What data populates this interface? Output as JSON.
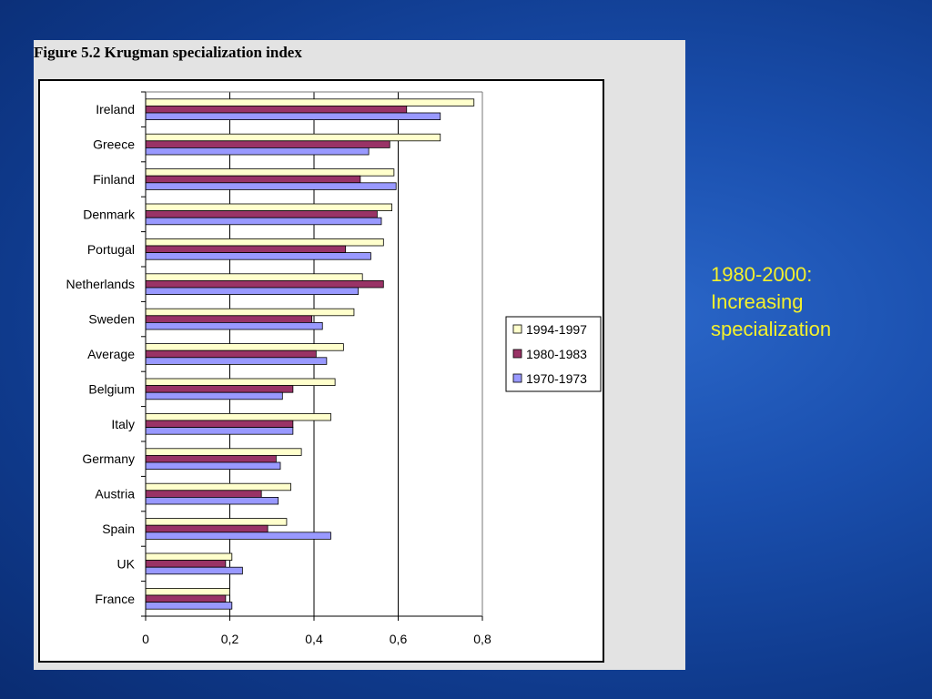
{
  "slide": {
    "figure_title": "Figure 5.2 Krugman specialization index",
    "side_note": [
      "1980-2000:",
      "Increasing",
      "specialization"
    ]
  },
  "chart_data": {
    "type": "bar",
    "orientation": "horizontal",
    "categories": [
      "Ireland",
      "Greece",
      "Finland",
      "Denmark",
      "Portugal",
      "Netherlands",
      "Sweden",
      "Average",
      "Belgium",
      "Italy",
      "Germany",
      "Austria",
      "Spain",
      "UK",
      "France"
    ],
    "series": [
      {
        "name": "1994-1997",
        "color": "#ffffcc",
        "values": [
          0.78,
          0.7,
          0.59,
          0.585,
          0.565,
          0.515,
          0.495,
          0.47,
          0.45,
          0.44,
          0.37,
          0.345,
          0.335,
          0.205,
          0.2
        ]
      },
      {
        "name": "1980-1983",
        "color": "#993366",
        "values": [
          0.62,
          0.58,
          0.51,
          0.55,
          0.475,
          0.565,
          0.395,
          0.405,
          0.35,
          0.35,
          0.31,
          0.275,
          0.29,
          0.19,
          0.19
        ]
      },
      {
        "name": "1970-1973",
        "color": "#9999ff",
        "values": [
          0.7,
          0.53,
          0.595,
          0.56,
          0.535,
          0.505,
          0.42,
          0.43,
          0.325,
          0.35,
          0.32,
          0.315,
          0.44,
          0.23,
          0.205
        ]
      }
    ],
    "xlim": [
      0,
      0.8
    ],
    "xticks": [
      0,
      0.2,
      0.4,
      0.6,
      0.8
    ],
    "xtick_labels": [
      "0",
      "0,2",
      "0,4",
      "0,6",
      "0,8"
    ],
    "grid": "vertical",
    "legend": "right"
  }
}
